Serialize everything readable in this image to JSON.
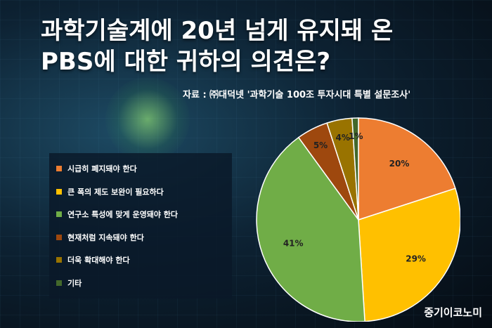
{
  "title_line1": "과학기술계에 20년 넘게 유지돼 온",
  "title_line2": "PBS에 대한 귀하의 의견은?",
  "source": "자료 : ㈜대덕넷 '과학기술 100조 투자시대 특별 설문조사'",
  "brand": "중기이코노미",
  "chart_data": {
    "type": "pie",
    "slices": [
      {
        "label": "시급히 폐지돼야 한다",
        "value": 20,
        "display": "20%",
        "color": "#ED7D31"
      },
      {
        "label": "큰 폭의 제도 보완이 필요하다",
        "value": 29,
        "display": "29%",
        "color": "#FFC000"
      },
      {
        "label": "연구소 특성에 맞게 운영돼야 한다",
        "value": 41,
        "display": "41%",
        "color": "#70AD47"
      },
      {
        "label": "현재처럼 지속돼야 한다",
        "value": 5,
        "display": "5%",
        "color": "#9E480E"
      },
      {
        "label": "더욱 확대해야 한다",
        "value": 4,
        "display": "4%",
        "color": "#997300"
      },
      {
        "label": "기타",
        "value": 1,
        "display": "1%",
        "color": "#43682B"
      }
    ],
    "start": "12 o'clock",
    "direction": "clockwise",
    "legend_position": "left"
  }
}
